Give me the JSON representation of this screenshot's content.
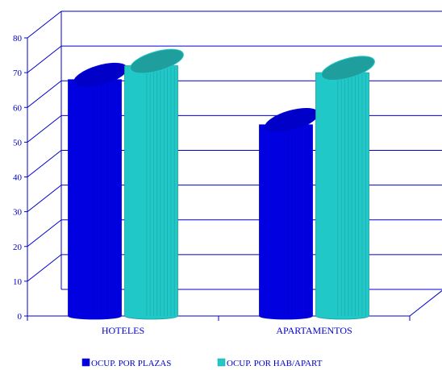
{
  "chart_data": {
    "type": "bar",
    "title": "",
    "xlabel": "",
    "ylabel": "",
    "categories": [
      "HOTELES",
      "APARTAMENTOS"
    ],
    "series": [
      {
        "name": "OCUP. POR PLAZAS",
        "values": [
          68,
          55
        ],
        "color": "#0000e0",
        "top_color": "#0000c8"
      },
      {
        "name": "OCUP. POR HAB/APART",
        "values": [
          72,
          70
        ],
        "color": "#20c8c8",
        "top_color": "#1f9e9e"
      }
    ],
    "ylim": [
      0,
      80
    ],
    "yticks": [
      "0",
      "10",
      "20",
      "30",
      "40",
      "50",
      "60",
      "70",
      "80"
    ],
    "grid": true,
    "legend_position": "bottom",
    "style": "3d-cylinder",
    "colors": {
      "axis": "#0000cc",
      "text": "#0000cc"
    }
  }
}
